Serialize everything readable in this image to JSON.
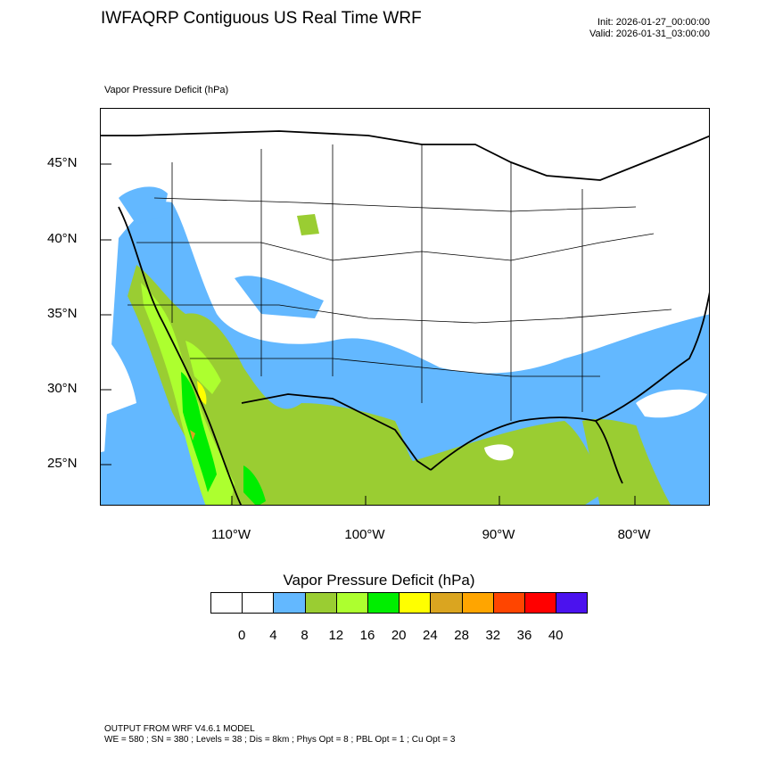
{
  "header": {
    "title": "IWFAQRP Contiguous US Real Time WRF",
    "init": "Init: 2026-01-27_00:00:00",
    "valid": "Valid: 2026-01-31_03:00:00"
  },
  "map": {
    "caption": "Vapor Pressure Deficit   (hPa)",
    "lat_labels": [
      "45°N",
      "40°N",
      "35°N",
      "30°N",
      "25°N"
    ],
    "lon_labels": [
      "110°W",
      "100°W",
      "90°W",
      "80°W"
    ],
    "colors": {
      "ocean": "#ffffff",
      "land_lowvpd": "#ffffff",
      "vpd_4_8": "#63b8ff",
      "vpd_8_12": "#9acd32",
      "vpd_12_16": "#adff2f",
      "vpd_16_20": "#00ee00",
      "vpd_20_24": "#ffff00",
      "vpd_24_28": "#daa520"
    }
  },
  "legend": {
    "title": "Vapor Pressure Deficit  (hPa)",
    "ticks": [
      "0",
      "4",
      "8",
      "12",
      "16",
      "20",
      "24",
      "28",
      "32",
      "36",
      "40"
    ],
    "colors": [
      "#ffffff",
      "#ffffff",
      "#63b8ff",
      "#9acd32",
      "#adff2f",
      "#00ee00",
      "#ffff00",
      "#daa520",
      "#ffa500",
      "#ff4500",
      "#ff0000",
      "#4b12ee"
    ]
  },
  "footer": {
    "line1": "OUTPUT FROM WRF V4.6.1 MODEL",
    "line2": "WE = 580 ; SN = 380 ; Levels = 38 ; Dis = 8km ; Phys Opt = 8 ; PBL Opt = 1 ; Cu Opt = 3"
  }
}
